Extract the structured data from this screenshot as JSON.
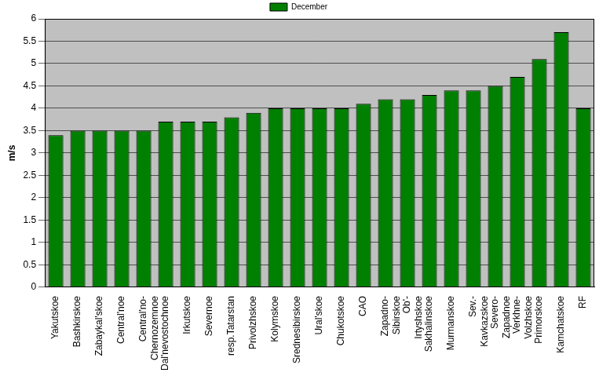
{
  "chart_data": {
    "type": "bar",
    "y_label": "m/s",
    "categories": [
      "Yakutskoe",
      "Bashkirskoe",
      "Zabaykal'skoe",
      "Central'noe",
      "Central'no-Chernozemnoe",
      "Dal'nevostochnoe",
      "Irkutskoe",
      "Severnoe",
      "resp.Tatarstan",
      "Privolzhskoe",
      "Kolymskoe",
      "Srednesibirskoe",
      "Ural'skoe",
      "Chukotskoe",
      "CAO",
      "Zapadno-Sibirskoe",
      "Ob'-Irtyshskoe",
      "Sakhalinskoe",
      "Murmanskoe",
      "Sev.-Kavkazskoe",
      "Severo-Zapadnoe",
      "Verkhne-Volzhskoe",
      "Primorskoe",
      "Kamchatskoe",
      "RF"
    ],
    "series": [
      {
        "name": "December",
        "color": "#008000",
        "values": [
          3.4,
          3.5,
          3.5,
          3.5,
          3.5,
          3.7,
          3.7,
          3.7,
          3.8,
          3.9,
          4.0,
          4.0,
          4.0,
          4.0,
          4.1,
          4.2,
          4.2,
          4.3,
          4.4,
          4.4,
          4.5,
          4.7,
          5.1,
          5.7,
          4.0
        ]
      }
    ],
    "ylim": [
      0,
      6
    ],
    "yticks": [
      0,
      0.5,
      1,
      1.5,
      2,
      2.5,
      3,
      3.5,
      4,
      4.5,
      5,
      5.5,
      6
    ],
    "grid": true,
    "legend": "top"
  }
}
